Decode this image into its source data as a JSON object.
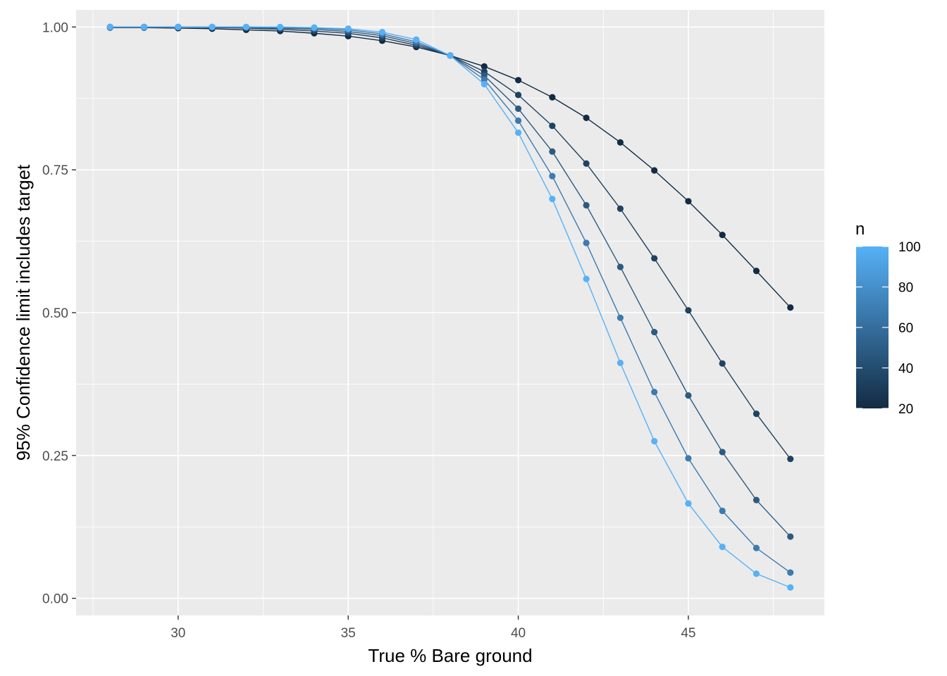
{
  "chart_data": {
    "type": "line",
    "title": "",
    "xlabel": "True % Bare ground",
    "ylabel": "95% Confidence limit includes target",
    "xlim": [
      27.0,
      49.0
    ],
    "ylim": [
      -0.03,
      1.03
    ],
    "x_ticks": [
      30,
      35,
      40,
      45
    ],
    "x_tick_labels": [
      "30",
      "35",
      "40",
      "45"
    ],
    "y_ticks": [
      0,
      0.25,
      0.5,
      0.75,
      1.0
    ],
    "y_tick_labels": [
      "0.00",
      "0.25",
      "0.50",
      "0.75",
      "1.00"
    ],
    "grid": true,
    "legend": {
      "title": "n",
      "position": "right",
      "type": "colorbar",
      "min": 20,
      "max": 100,
      "ticks": [
        20,
        40,
        60,
        80,
        100
      ],
      "tick_labels": [
        "20",
        "40",
        "60",
        "80",
        "100"
      ],
      "low_color": "#132b43",
      "high_color": "#56b1f7"
    },
    "x": [
      28,
      29,
      30,
      31,
      32,
      33,
      34,
      35,
      36,
      37,
      38,
      39,
      40,
      41,
      42,
      43,
      44,
      45,
      46,
      47,
      48
    ],
    "series": [
      {
        "name": "20",
        "n": 20,
        "color": "#132b43",
        "values": [
          0.999,
          0.999,
          0.998,
          0.997,
          0.995,
          0.993,
          0.989,
          0.984,
          0.976,
          0.965,
          0.95,
          0.931,
          0.907,
          0.877,
          0.841,
          0.798,
          0.749,
          0.695,
          0.636,
          0.573,
          0.509
        ]
      },
      {
        "name": "40",
        "n": 40,
        "color": "#1f4260",
        "values": [
          1.0,
          1.0,
          1.0,
          0.999,
          0.998,
          0.996,
          0.993,
          0.989,
          0.981,
          0.968,
          0.95,
          0.922,
          0.881,
          0.827,
          0.761,
          0.682,
          0.595,
          0.504,
          0.411,
          0.323,
          0.244
        ]
      },
      {
        "name": "60",
        "n": 60,
        "color": "#2d5a80",
        "values": [
          1.0,
          1.0,
          1.0,
          1.0,
          0.999,
          0.998,
          0.996,
          0.992,
          0.985,
          0.971,
          0.95,
          0.915,
          0.857,
          0.782,
          0.688,
          0.58,
          0.466,
          0.355,
          0.256,
          0.172,
          0.108
        ]
      },
      {
        "name": "80",
        "n": 80,
        "color": "#3c7ab0",
        "values": [
          1.0,
          1.0,
          1.0,
          1.0,
          1.0,
          0.999,
          0.998,
          0.995,
          0.988,
          0.974,
          0.95,
          0.908,
          0.836,
          0.739,
          0.622,
          0.491,
          0.361,
          0.245,
          0.153,
          0.088,
          0.045
        ]
      },
      {
        "name": "100",
        "n": 100,
        "color": "#56b1f7",
        "values": [
          1.0,
          1.0,
          1.0,
          1.0,
          1.0,
          1.0,
          0.999,
          0.997,
          0.991,
          0.978,
          0.95,
          0.9,
          0.815,
          0.699,
          0.559,
          0.412,
          0.275,
          0.166,
          0.09,
          0.043,
          0.019
        ]
      }
    ]
  }
}
